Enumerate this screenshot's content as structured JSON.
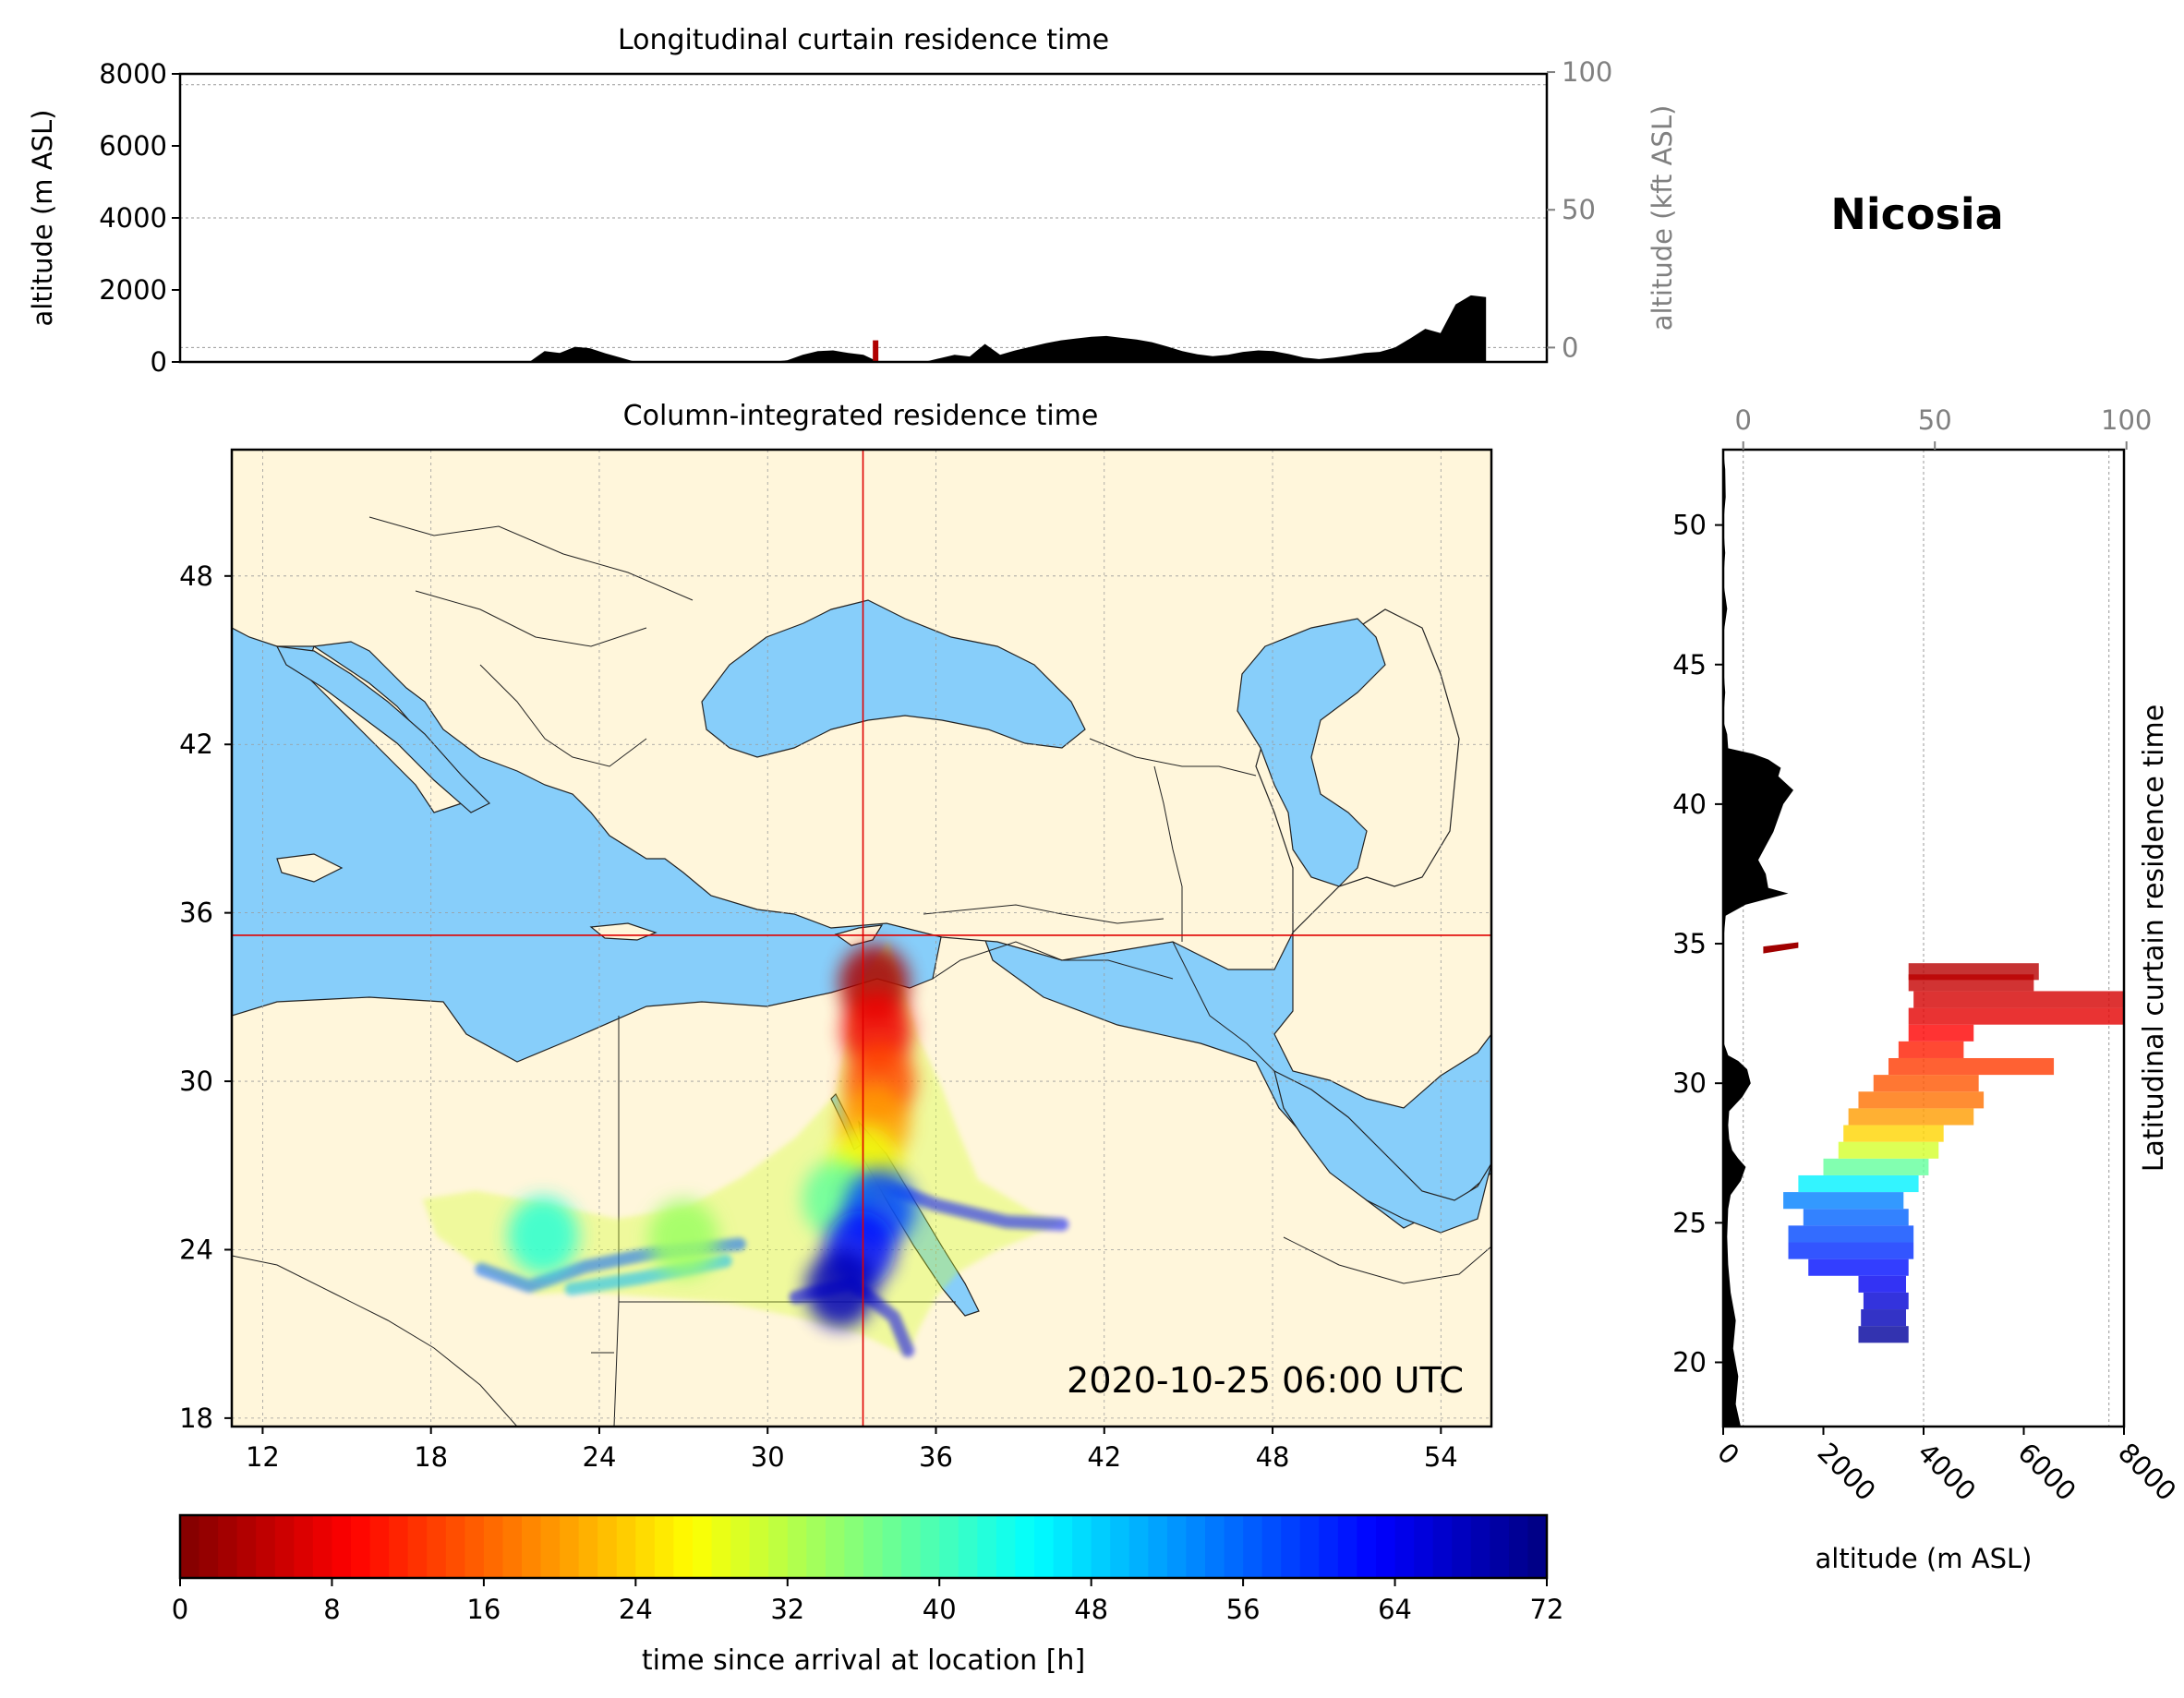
{
  "location_title": "Nicosia",
  "timestamp": "2020-10-25 06:00 UTC",
  "colors": {
    "land": "#fff6db",
    "water": "#87cefa",
    "terrain": "#000000",
    "crosshair": "#e00000",
    "gridline": "#9a9a9a",
    "secondary_axis": "#808080"
  },
  "chart_data": [
    {
      "id": "longitudinal",
      "type": "area",
      "title": "Longitudinal curtain residence time",
      "ylabel": "altitude (m ASL)",
      "ylabel_right": "altitude (kft ASL)",
      "ylim": [
        0,
        8000
      ],
      "yticks": [
        "0",
        "2000",
        "4000",
        "6000",
        "8000"
      ],
      "yticks_right": [
        "0",
        "50",
        "100"
      ],
      "xlim": [
        10.5,
        55.5
      ],
      "grid_altitudes": [
        400,
        4000,
        7700
      ],
      "terrain": {
        "lon": [
          10.5,
          21.5,
          22.0,
          22.5,
          23.0,
          23.5,
          24.0,
          24.5,
          25.0,
          25.5,
          26.0,
          28.0,
          29.5,
          30.0,
          30.5,
          31.0,
          31.5,
          32.0,
          32.5,
          33.0,
          33.5,
          34.0,
          35.0,
          35.5,
          36.0,
          36.5,
          37.0,
          37.5,
          38.0,
          38.5,
          39.0,
          39.5,
          40.0,
          40.5,
          41.0,
          41.5,
          42.0,
          42.5,
          43.0,
          43.5,
          44.0,
          44.5,
          45.0,
          45.5,
          46.0,
          46.5,
          47.0,
          47.5,
          48.0,
          48.5,
          49.0,
          49.5,
          50.0,
          50.5,
          51.0,
          51.5,
          52.0,
          52.5,
          53.0,
          53.5,
          53.5,
          55.5
        ],
        "alt": [
          0,
          0,
          0,
          300,
          250,
          420,
          380,
          240,
          120,
          0,
          0,
          0,
          0,
          0,
          50,
          200,
          300,
          320,
          250,
          200,
          0,
          0,
          0,
          100,
          200,
          150,
          500,
          200,
          320,
          420,
          520,
          600,
          650,
          700,
          720,
          670,
          620,
          550,
          430,
          300,
          210,
          160,
          200,
          280,
          320,
          300,
          220,
          120,
          80,
          120,
          180,
          250,
          280,
          400,
          650,
          920,
          800,
          1600,
          1850,
          1800,
          0,
          0
        ]
      },
      "residence_marker": {
        "lon": 33.4,
        "alt": 600
      }
    },
    {
      "id": "column",
      "type": "scatter",
      "title": "Column-integrated residence time",
      "xticks": [
        "12",
        "18",
        "24",
        "30",
        "36",
        "42",
        "48",
        "54"
      ],
      "yticks": [
        "18",
        "24",
        "30",
        "36",
        "42",
        "48"
      ],
      "xlim": [
        10.9,
        55.8
      ],
      "ylim": [
        17.7,
        52.5
      ],
      "release_point": {
        "lon": 33.4,
        "lat": 35.2
      },
      "hull": [
        [
          34.3,
          35.0
        ],
        [
          35.4,
          31.5
        ],
        [
          36.2,
          29.8
        ],
        [
          36.8,
          28.2
        ],
        [
          37.5,
          26.5
        ],
        [
          39.5,
          25.3
        ],
        [
          40.6,
          25.0
        ],
        [
          38.2,
          24.0
        ],
        [
          36.8,
          23.2
        ],
        [
          36.0,
          22.3
        ],
        [
          35.4,
          21.2
        ],
        [
          35.0,
          20.2
        ],
        [
          33.3,
          21.0
        ],
        [
          31.0,
          21.6
        ],
        [
          28.6,
          22.1
        ],
        [
          26.0,
          22.3
        ],
        [
          23.3,
          22.5
        ],
        [
          21.8,
          22.4
        ],
        [
          19.8,
          23.3
        ],
        [
          18.2,
          24.5
        ],
        [
          17.7,
          25.8
        ],
        [
          19.6,
          26.1
        ],
        [
          22.3,
          25.6
        ],
        [
          24.6,
          25.1
        ],
        [
          27.1,
          25.5
        ],
        [
          29.1,
          26.6
        ],
        [
          31.0,
          28.0
        ],
        [
          32.4,
          29.5
        ],
        [
          32.8,
          31.4
        ],
        [
          33.2,
          33.4
        ]
      ],
      "branches": [
        {
          "t": 62,
          "pts": [
            [
              33.6,
              26.5
            ],
            [
              36.0,
              25.6
            ],
            [
              38.5,
              25.0
            ],
            [
              40.5,
              24.9
            ]
          ]
        },
        {
          "t": 56,
          "pts": [
            [
              29.0,
              24.2
            ],
            [
              26.0,
              23.9
            ],
            [
              23.5,
              23.4
            ],
            [
              21.5,
              22.7
            ],
            [
              19.8,
              23.3
            ]
          ]
        },
        {
          "t": 64,
          "pts": [
            [
              31.0,
              22.3
            ],
            [
              33.0,
              22.8
            ],
            [
              34.5,
              21.6
            ],
            [
              35.0,
              20.4
            ]
          ]
        },
        {
          "t": 50,
          "pts": [
            [
              28.5,
              23.6
            ],
            [
              25.5,
              23.0
            ],
            [
              23.0,
              22.6
            ]
          ]
        }
      ],
      "hotspots": [
        {
          "lon": 33.8,
          "lat": 33.5,
          "t": 3
        },
        {
          "lon": 33.9,
          "lat": 31.8,
          "t": 8
        },
        {
          "lon": 34.0,
          "lat": 30.0,
          "t": 14
        },
        {
          "lon": 33.8,
          "lat": 28.5,
          "t": 20
        },
        {
          "lon": 33.5,
          "lat": 27.0,
          "t": 28
        },
        {
          "lon": 32.5,
          "lat": 25.8,
          "t": 38
        },
        {
          "lon": 34.0,
          "lat": 25.5,
          "t": 58
        },
        {
          "lon": 33.3,
          "lat": 24.0,
          "t": 62
        },
        {
          "lon": 32.6,
          "lat": 22.6,
          "t": 68
        },
        {
          "lon": 27.0,
          "lat": 24.4,
          "t": 34
        },
        {
          "lon": 22.0,
          "lat": 24.5,
          "t": 42
        }
      ]
    },
    {
      "id": "latitudinal",
      "type": "area",
      "title": "Latitudinal curtain residence time",
      "xlabel": "altitude (m ASL)",
      "xticks": [
        "0",
        "2000",
        "4000",
        "6000",
        "8000"
      ],
      "xticks_top": [
        "0",
        "50",
        "100"
      ],
      "xlim": [
        0,
        8000
      ],
      "ylim": [
        17.7,
        52.7
      ],
      "yticks": [
        "20",
        "25",
        "30",
        "35",
        "40",
        "45",
        "50"
      ],
      "grid_altitudes": [
        400,
        4000,
        7700
      ],
      "terrain": {
        "lat": [
          17.7,
          18.5,
          19.5,
          20.5,
          21.5,
          22.5,
          23.5,
          24.5,
          25.5,
          26.0,
          26.5,
          27.0,
          27.3,
          27.6,
          28.0,
          28.5,
          29.0,
          29.5,
          30.0,
          30.5,
          30.8,
          31.0,
          31.5,
          32.0,
          33.0,
          34.0,
          35.0,
          36.0,
          36.4,
          36.8,
          37.0,
          37.5,
          38.0,
          38.5,
          39.0,
          39.5,
          40.0,
          40.5,
          41.0,
          41.3,
          41.6,
          41.8,
          42.0,
          42.5,
          43.0,
          44.0,
          45.0,
          46.0,
          47.0,
          48.0,
          49.0,
          50.0,
          51.0,
          52.0,
          52.7
        ],
        "alt": [
          350,
          250,
          300,
          200,
          250,
          150,
          100,
          80,
          100,
          150,
          350,
          450,
          300,
          180,
          120,
          100,
          120,
          380,
          550,
          480,
          300,
          100,
          0,
          0,
          0,
          0,
          0,
          50,
          450,
          1300,
          900,
          850,
          700,
          850,
          1000,
          1100,
          1200,
          1400,
          1100,
          1150,
          900,
          600,
          100,
          80,
          0,
          40,
          0,
          0,
          80,
          0,
          40,
          0,
          50,
          40,
          0
        ]
      },
      "residence_marker": {
        "lat": 34.9,
        "alt_from": 800,
        "alt_to": 1500
      },
      "profile": [
        {
          "lat": 21.0,
          "from": 2700,
          "to": 3700,
          "t": 70
        },
        {
          "lat": 21.6,
          "from": 2750,
          "to": 3650,
          "t": 68
        },
        {
          "lat": 22.2,
          "from": 2800,
          "to": 3700,
          "t": 66
        },
        {
          "lat": 22.8,
          "from": 2700,
          "to": 3650,
          "t": 64
        },
        {
          "lat": 23.4,
          "from": 1700,
          "to": 3700,
          "t": 62
        },
        {
          "lat": 24.0,
          "from": 1300,
          "to": 3800,
          "t": 60
        },
        {
          "lat": 24.6,
          "from": 1300,
          "to": 3800,
          "t": 58
        },
        {
          "lat": 25.2,
          "from": 1600,
          "to": 3700,
          "t": 56
        },
        {
          "lat": 25.8,
          "from": 1200,
          "to": 3600,
          "t": 54
        },
        {
          "lat": 26.4,
          "from": 1500,
          "to": 3900,
          "t": 46
        },
        {
          "lat": 27.0,
          "from": 2000,
          "to": 4100,
          "t": 38
        },
        {
          "lat": 27.6,
          "from": 2300,
          "to": 4300,
          "t": 30
        },
        {
          "lat": 28.2,
          "from": 2400,
          "to": 4400,
          "t": 24
        },
        {
          "lat": 28.8,
          "from": 2500,
          "to": 5000,
          "t": 20
        },
        {
          "lat": 29.4,
          "from": 2700,
          "to": 5200,
          "t": 17
        },
        {
          "lat": 30.0,
          "from": 3000,
          "to": 5100,
          "t": 15
        },
        {
          "lat": 30.6,
          "from": 3300,
          "to": 6600,
          "t": 13
        },
        {
          "lat": 31.2,
          "from": 3500,
          "to": 4800,
          "t": 11
        },
        {
          "lat": 31.8,
          "from": 3700,
          "to": 5000,
          "t": 9
        },
        {
          "lat": 32.4,
          "from": 3700,
          "to": 8000,
          "t": 7
        },
        {
          "lat": 33.0,
          "from": 3800,
          "to": 8000,
          "t": 6
        },
        {
          "lat": 33.6,
          "from": 3700,
          "to": 6200,
          "t": 5
        },
        {
          "lat": 34.0,
          "from": 3700,
          "to": 6300,
          "t": 4
        }
      ]
    },
    {
      "id": "colorbar",
      "type": "heatmap",
      "xlabel": "time since arrival at location [h]",
      "range": [
        0,
        72
      ],
      "ticks": [
        "0",
        "8",
        "16",
        "24",
        "32",
        "40",
        "48",
        "56",
        "64",
        "72"
      ]
    }
  ]
}
